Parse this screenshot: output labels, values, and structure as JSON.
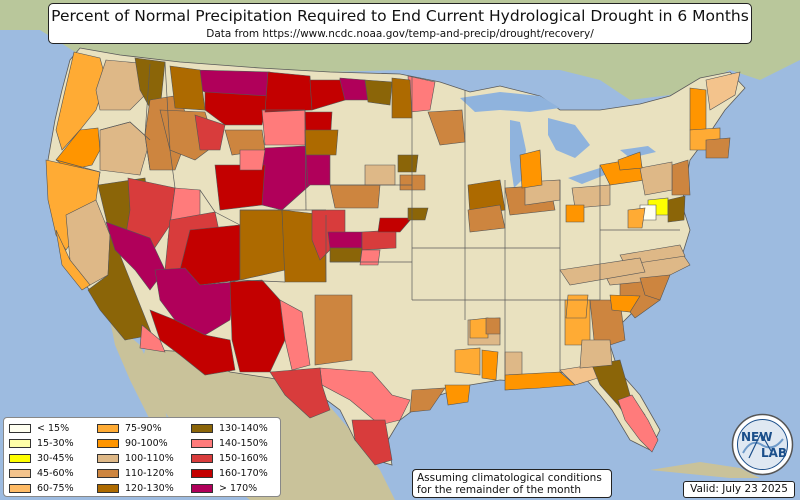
{
  "title": "Percent of Normal Precipitation Required to End Current Hydrological Drought in 6 Months",
  "subtitle": "Data from https://www.ncdc.noaa.gov/temp-and-precip/drought/recovery/",
  "legend": {
    "items": [
      {
        "label": "< 15%",
        "color": "#fffff0"
      },
      {
        "label": "15-30%",
        "color": "#ffffa8"
      },
      {
        "label": "30-45%",
        "color": "#ffff00"
      },
      {
        "label": "45-60%",
        "color": "#f3c38c"
      },
      {
        "label": "60-75%",
        "color": "#ffbb66"
      },
      {
        "label": "75-90%",
        "color": "#ffab34"
      },
      {
        "label": "90-100%",
        "color": "#ff9500"
      },
      {
        "label": "100-110%",
        "color": "#deb887"
      },
      {
        "label": "110-120%",
        "color": "#cd853f"
      },
      {
        "label": "120-130%",
        "color": "#ad6a00"
      },
      {
        "label": "130-140%",
        "color": "#8b6508"
      },
      {
        "label": "140-150%",
        "color": "#ff7b7b"
      },
      {
        "label": "150-160%",
        "color": "#d83c3c"
      },
      {
        "label": "160-170%",
        "color": "#c30000"
      },
      {
        "label": "> 170%",
        "color": "#b0005a"
      }
    ]
  },
  "note": {
    "line1": "Assuming climatological conditions",
    "line2": "for the remainder of the month"
  },
  "valid": "Valid: July 23 2025",
  "logo": {
    "text_top": "NEW",
    "text_bottom": "LAB"
  },
  "colors": {
    "ocean": "#9dbbe0",
    "land_outside": "#b8c89a",
    "land_us": "#e9e1bf",
    "state_border": "#5a5a5a",
    "lakes": "#8fb3dd"
  }
}
